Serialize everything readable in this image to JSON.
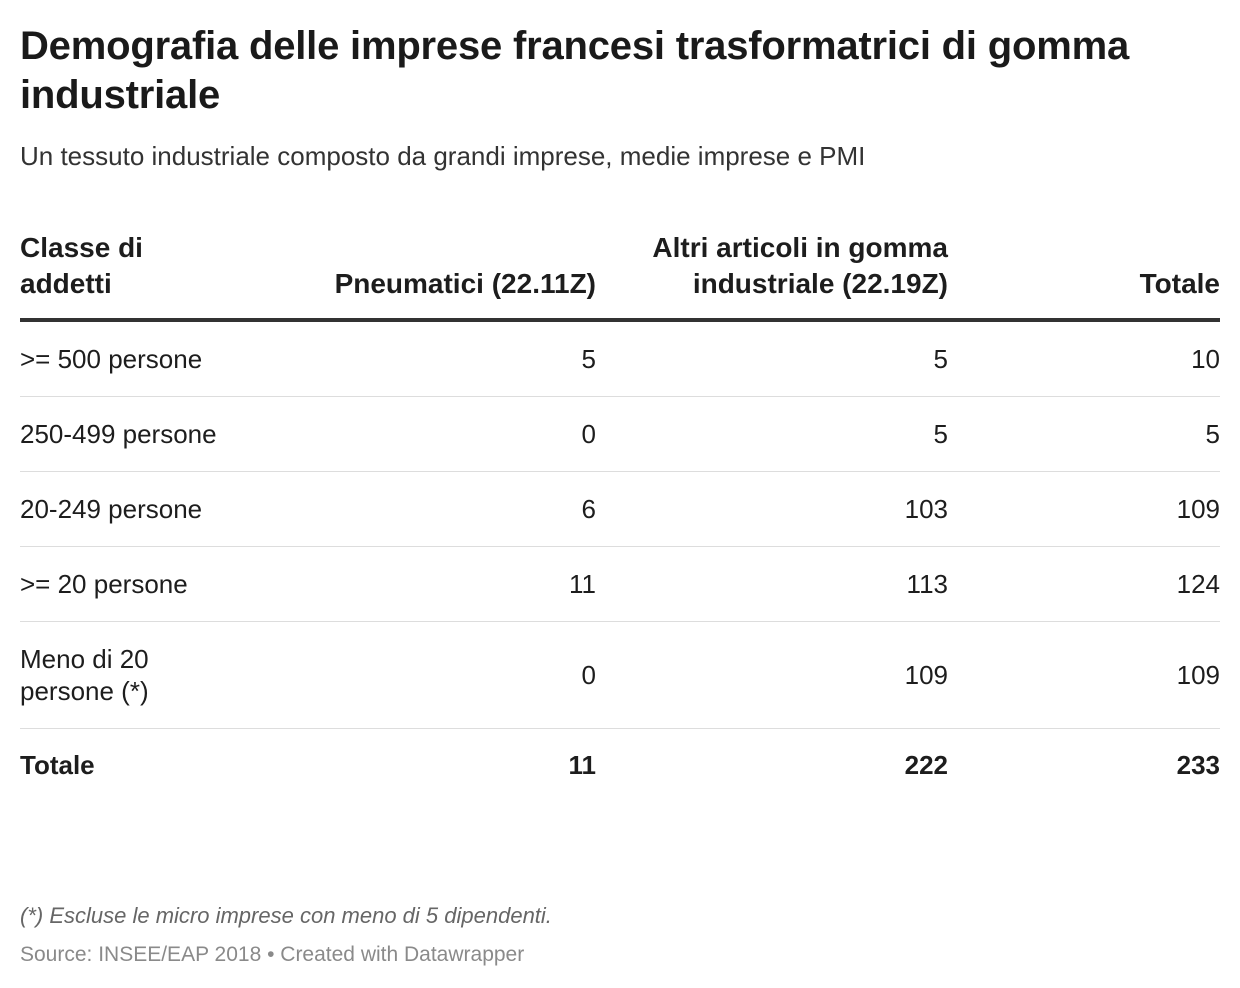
{
  "header": {
    "title": "Demografia delle imprese francesi trasformatrici di gomma industriale",
    "subtitle": "Un tessuto industriale composto da grandi imprese, medie imprese e PMI"
  },
  "chart_data": {
    "type": "table",
    "columns": [
      "Classe di addetti",
      "Pneumatici (22.11Z)",
      "Altri articoli in gomma industriale (22.19Z)",
      "Totale"
    ],
    "rows": [
      [
        ">= 500 persone",
        "5",
        "5",
        "10"
      ],
      [
        "250-499 persone",
        "0",
        "5",
        "5"
      ],
      [
        "20-249 persone",
        "6",
        "103",
        "109"
      ],
      [
        ">= 20 persone",
        "11",
        "113",
        "124"
      ],
      [
        "Meno di 20 persone (*)",
        "0",
        "109",
        "109"
      ]
    ],
    "total_row": [
      "Totale",
      "11",
      "222",
      "233"
    ]
  },
  "footer": {
    "notes": "(*) Escluse le micro imprese con meno di 5 dipendenti.",
    "source": "Source: INSEE/EAP 2018 • Created with Datawrapper"
  }
}
